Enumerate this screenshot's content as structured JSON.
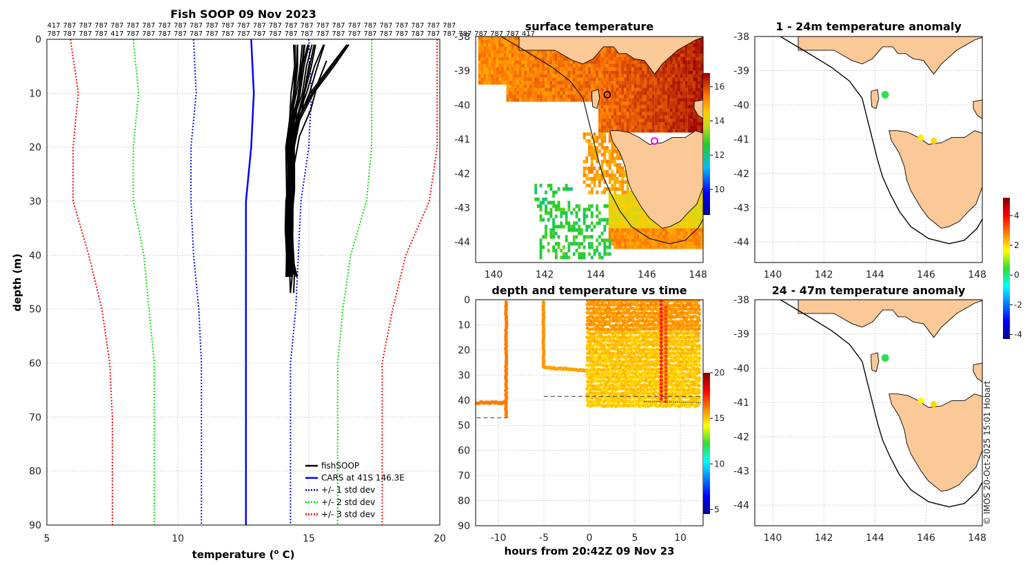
{
  "chart_data": [
    {
      "id": "profile",
      "type": "line",
      "title": "Fish SOOP 09 Nov 2023",
      "xlabel": "temperature (",
      "xlabel_unit_sup": "o",
      "xlabel_unit": " C)",
      "ylabel": "depth (m)",
      "xlim": [
        5,
        20
      ],
      "ylim": [
        0,
        90
      ],
      "y_reversed": true,
      "xticks": [
        5,
        10,
        15,
        20
      ],
      "yticks": [
        0,
        10,
        20,
        30,
        40,
        50,
        60,
        70,
        80,
        90
      ],
      "grid": true,
      "legend_placement": "bottom-right",
      "top_counts_row1": [
        "417",
        "787",
        "787",
        "787",
        "787",
        "787",
        "787",
        "787",
        "787",
        "787",
        "787",
        "787",
        "787",
        "787",
        "787",
        "787",
        "787",
        "787",
        "787",
        "787",
        "787",
        "787",
        "787",
        "787",
        "787",
        "787"
      ],
      "top_counts_row2": [
        "787",
        "787",
        "787",
        "787",
        "417",
        "787",
        "787",
        "787",
        "787",
        "787",
        "787",
        "787",
        "787",
        "787",
        "787",
        "787",
        "787",
        "787",
        "787",
        "787",
        "787",
        "787",
        "787",
        "787",
        "787",
        "787"
      ],
      "top_counts_row3": [
        "787",
        "787",
        "787",
        "787",
        "417"
      ],
      "depth": [
        0,
        10,
        20,
        30,
        40,
        50,
        60,
        70,
        80,
        90
      ],
      "series": [
        {
          "name": "fishSOOP",
          "color": "#000000",
          "style": "solid"
        },
        {
          "name": "CARS at 41S 146.3E",
          "color": "#0000ff",
          "style": "solid",
          "values": [
            12.8,
            12.9,
            12.8,
            12.6,
            12.6,
            12.6,
            12.6,
            12.6,
            12.6,
            12.6
          ]
        },
        {
          "name": "+/- 1 std dev",
          "color": "#0000ff",
          "style": "dotted",
          "lower": [
            10.6,
            10.7,
            10.5,
            10.5,
            10.6,
            10.8,
            10.9,
            10.9,
            10.9,
            10.9
          ],
          "upper": [
            15.0,
            15.1,
            15.0,
            14.7,
            14.6,
            14.5,
            14.3,
            14.3,
            14.3,
            14.3
          ]
        },
        {
          "name": "+/- 2 std dev",
          "color": "#00dd00",
          "style": "dotted",
          "lower": [
            8.3,
            8.5,
            8.3,
            8.3,
            8.7,
            8.9,
            9.1,
            9.1,
            9.1,
            9.1
          ],
          "upper": [
            17.4,
            17.4,
            17.4,
            17.2,
            16.6,
            16.3,
            16.1,
            16.1,
            16.1,
            16.1
          ]
        },
        {
          "name": "+/- 3 std dev",
          "color": "#ff0000",
          "style": "dotted",
          "lower": [
            5.9,
            6.2,
            6.0,
            6.0,
            6.6,
            7.1,
            7.4,
            7.5,
            7.5,
            7.5
          ],
          "upper": [
            19.9,
            19.9,
            19.9,
            19.6,
            18.7,
            18.2,
            17.8,
            17.8,
            17.8,
            17.8
          ]
        }
      ],
      "fishsoop_depth": [
        1,
        5,
        10,
        15,
        20,
        25,
        30,
        35,
        40,
        44
      ],
      "fishsoop_profiles": [
        [
          16.5,
          15.9,
          15.1,
          14.6,
          14.4,
          14.4,
          14.3,
          14.3,
          14.3,
          14.5
        ],
        [
          15.6,
          15.3,
          15.0,
          14.6,
          14.4,
          14.4,
          14.3,
          14.3,
          14.4,
          14.4
        ],
        [
          15.2,
          15.0,
          14.8,
          14.5,
          14.3,
          14.3,
          14.3,
          14.3,
          14.3,
          14.3
        ],
        [
          15.0,
          14.8,
          14.7,
          14.4,
          14.3,
          14.3,
          14.3,
          14.3,
          14.3,
          14.2
        ],
        [
          14.8,
          14.7,
          14.6,
          14.4,
          14.3,
          14.3,
          14.3,
          14.2,
          14.2,
          14.2
        ],
        [
          14.6,
          14.6,
          14.5,
          14.4,
          14.3,
          14.3,
          14.2,
          14.2,
          14.2,
          14.2
        ],
        [
          14.5,
          14.5,
          14.4,
          14.3,
          14.2,
          14.2,
          14.2,
          14.2,
          14.2,
          14.2
        ]
      ]
    },
    {
      "id": "sst",
      "type": "heatmap",
      "title": "surface temperature",
      "xticks": [
        140,
        142,
        144,
        146,
        148
      ],
      "yticks": [
        -38,
        -39,
        -40,
        -41,
        -42,
        -43,
        -44
      ],
      "xlim": [
        139.3,
        148.2
      ],
      "ylim": [
        -44.6,
        -38
      ],
      "colorbar_ticks": [
        10,
        12,
        14,
        16
      ],
      "colorbar_range": [
        8.5,
        16.8
      ]
    },
    {
      "id": "anom1",
      "type": "scatter",
      "title": "1 - 24m temperature anomaly",
      "xticks": [
        140,
        142,
        144,
        146,
        148
      ],
      "yticks": [
        -38,
        -39,
        -40,
        -41,
        -42,
        -43,
        -44
      ],
      "xlim": [
        139.3,
        148.2
      ],
      "ylim": [
        -44.6,
        -38
      ],
      "points": [
        {
          "lon": 144.4,
          "lat": -39.7,
          "anomaly": 0.3
        },
        {
          "lon": 145.8,
          "lat": -40.95,
          "anomaly": 1.8
        },
        {
          "lon": 146.3,
          "lat": -41.05,
          "anomaly": 2.0
        }
      ]
    },
    {
      "id": "anom2",
      "type": "scatter",
      "title": "24 - 47m temperature anomaly",
      "xticks": [
        140,
        142,
        144,
        146,
        148
      ],
      "yticks": [
        -38,
        -39,
        -40,
        -41,
        -42,
        -43,
        -44
      ],
      "xlim": [
        139.3,
        148.2
      ],
      "ylim": [
        -44.6,
        -38
      ],
      "points": [
        {
          "lon": 144.4,
          "lat": -39.7,
          "anomaly": 0.3
        },
        {
          "lon": 145.8,
          "lat": -40.95,
          "anomaly": 1.6
        },
        {
          "lon": 146.3,
          "lat": -41.05,
          "anomaly": 2.0
        }
      ],
      "colorbar_ticks": [
        -4,
        -2,
        0,
        2,
        4
      ],
      "colorbar_range": [
        -4.3,
        5.2
      ]
    },
    {
      "id": "timeseries",
      "type": "scatter",
      "title": "depth and temperature vs time",
      "xlabel": "hours from 20:42Z 09 Nov 23",
      "xlim": [
        -12.5,
        12.5
      ],
      "ylim": [
        0,
        90
      ],
      "y_reversed": true,
      "xticks": [
        -10,
        -5,
        0,
        5,
        10
      ],
      "yticks": [
        0,
        10,
        20,
        30,
        40,
        50,
        60,
        70,
        80,
        90
      ],
      "colorbar_ticks": [
        5,
        10,
        15,
        20
      ],
      "colorbar_range": [
        4.5,
        20
      ]
    }
  ],
  "credit": "© IMOS 20-Oct-2025 15:01 Hobart",
  "colors": {
    "land": "#fbc897",
    "fishsoop": "#000000",
    "cars": "#0000ff",
    "std1": "#0000ff",
    "std2": "#00dd00",
    "std3": "#ff0000"
  }
}
